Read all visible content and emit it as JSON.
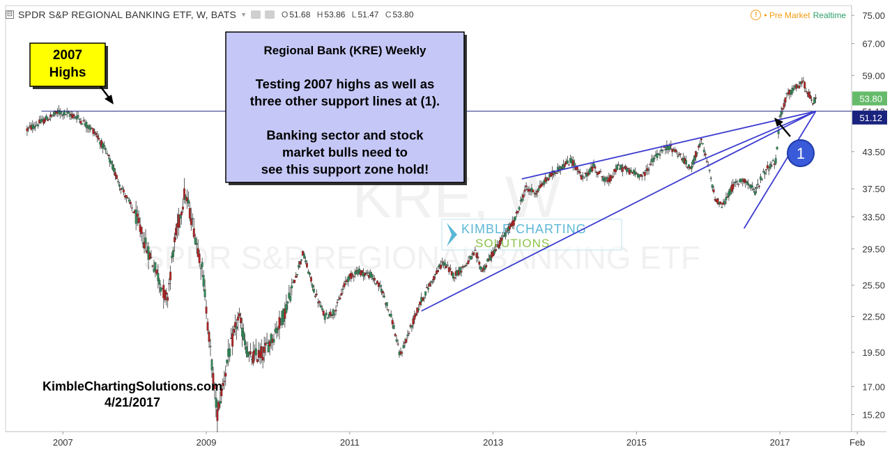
{
  "header": {
    "collapse_glyph": "⊟",
    "symbol_title": "SPDR S&P REGIONAL BANKING ETF, W, BATS",
    "dropdown_icon": "chevron-down-icon",
    "ohlc": [
      {
        "label": "O",
        "value": "51.68"
      },
      {
        "label": "H",
        "value": "53.86"
      },
      {
        "label": "L",
        "value": "51.47"
      },
      {
        "label": "C",
        "value": "53.80"
      }
    ],
    "alert_glyph": "!",
    "premarket_label": "• Pre Market",
    "realtime_label": "Realtime"
  },
  "watermark": {
    "line1": "KRE, W",
    "line2": "SPDR S&P REGIONAL BANKING ETF"
  },
  "logo": {
    "line1": "KIMBLE CHARTING",
    "line2": "SOLUTIONS"
  },
  "callout": {
    "highs_box": [
      "2007",
      "Highs"
    ],
    "note_lines": [
      "Regional Bank (KRE) Weekly",
      "",
      "Testing 2007 highs as well as",
      "three other support lines at (1).",
      "",
      "Banking sector and stock",
      "market bulls need to",
      "see this support zone hold!"
    ],
    "marker_label": "1",
    "credit_lines": [
      "KimbleChartingSolutions.com",
      "4/21/2017"
    ]
  },
  "colors": {
    "up": "#2e8b57",
    "down": "#b22222",
    "trend": "#3b3bd1",
    "support": "#1a237e",
    "note_fill": "#c5c8f7",
    "highs_fill": "#ffff00",
    "marker": "#3a5bd9",
    "price_tag": "#66bb6a",
    "support_tag": "#1a237e"
  },
  "chart_data": {
    "type": "candlestick",
    "title": "SPDR S&P REGIONAL BANKING ETF, W, BATS",
    "y_scale": "log",
    "ylim": [
      14.2,
      78
    ],
    "xlim": [
      2006.2,
      2018.0
    ],
    "y_ticks": [
      "75.00",
      "67.00",
      "59.00",
      "51.12",
      "43.50",
      "37.50",
      "33.50",
      "29.50",
      "25.50",
      "22.50",
      "19.50",
      "17.00",
      "15.20"
    ],
    "x_ticks": [
      {
        "label": "2007",
        "x": 2007.0
      },
      {
        "label": "2009",
        "x": 2009.0
      },
      {
        "label": "2011",
        "x": 2011.0
      },
      {
        "label": "2013",
        "x": 2013.0
      },
      {
        "label": "2015",
        "x": 2015.0
      },
      {
        "label": "2017",
        "x": 2017.0
      },
      {
        "label": "Feb",
        "x": 2018.08
      }
    ],
    "last_price": {
      "label": "53.80",
      "value": 53.8
    },
    "support_level": {
      "label": "51.12",
      "value": 51.12,
      "x_start": 2006.7
    },
    "price_path": [
      [
        2006.5,
        47.5
      ],
      [
        2006.7,
        49
      ],
      [
        2006.95,
        51
      ],
      [
        2007.2,
        50
      ],
      [
        2007.45,
        47
      ],
      [
        2007.6,
        43.5
      ],
      [
        2007.8,
        38
      ],
      [
        2008.0,
        34
      ],
      [
        2008.15,
        30
      ],
      [
        2008.3,
        27
      ],
      [
        2008.45,
        24
      ],
      [
        2008.55,
        30
      ],
      [
        2008.7,
        37
      ],
      [
        2008.8,
        33
      ],
      [
        2008.95,
        27
      ],
      [
        2009.05,
        20
      ],
      [
        2009.15,
        15.2
      ],
      [
        2009.3,
        19
      ],
      [
        2009.45,
        22.5
      ],
      [
        2009.6,
        19
      ],
      [
        2009.8,
        19.5
      ],
      [
        2009.95,
        21
      ],
      [
        2010.1,
        23
      ],
      [
        2010.25,
        26.5
      ],
      [
        2010.35,
        29
      ],
      [
        2010.5,
        25
      ],
      [
        2010.65,
        22.5
      ],
      [
        2010.8,
        23
      ],
      [
        2010.95,
        26
      ],
      [
        2011.1,
        27
      ],
      [
        2011.3,
        26.5
      ],
      [
        2011.45,
        25
      ],
      [
        2011.6,
        22
      ],
      [
        2011.7,
        19.2
      ],
      [
        2011.85,
        21.5
      ],
      [
        2012.0,
        24
      ],
      [
        2012.15,
        26
      ],
      [
        2012.3,
        28
      ],
      [
        2012.45,
        26.5
      ],
      [
        2012.6,
        27.5
      ],
      [
        2012.75,
        29
      ],
      [
        2012.85,
        27
      ],
      [
        2013.0,
        29
      ],
      [
        2013.15,
        31
      ],
      [
        2013.3,
        33
      ],
      [
        2013.45,
        37.5
      ],
      [
        2013.6,
        37
      ],
      [
        2013.75,
        39
      ],
      [
        2013.9,
        40.5
      ],
      [
        2014.1,
        42
      ],
      [
        2014.25,
        39
      ],
      [
        2014.4,
        41
      ],
      [
        2014.6,
        38.5
      ],
      [
        2014.75,
        41
      ],
      [
        2014.95,
        40
      ],
      [
        2015.1,
        39.5
      ],
      [
        2015.25,
        42.5
      ],
      [
        2015.45,
        44.5
      ],
      [
        2015.6,
        43
      ],
      [
        2015.75,
        40.5
      ],
      [
        2015.9,
        45.5
      ],
      [
        2016.0,
        41
      ],
      [
        2016.1,
        36
      ],
      [
        2016.2,
        35
      ],
      [
        2016.35,
        38
      ],
      [
        2016.5,
        39
      ],
      [
        2016.65,
        37
      ],
      [
        2016.8,
        40.5
      ],
      [
        2016.95,
        42
      ],
      [
        2017.0,
        50
      ],
      [
        2017.1,
        54.5
      ],
      [
        2017.25,
        56.5
      ],
      [
        2017.32,
        57.5
      ],
      [
        2017.4,
        55
      ],
      [
        2017.45,
        52.5
      ],
      [
        2017.5,
        53.8
      ]
    ],
    "trendlines": [
      {
        "from": [
          2012.0,
          23.0
        ],
        "to": [
          2017.5,
          51.12
        ]
      },
      {
        "from": [
          2013.4,
          39.0
        ],
        "to": [
          2017.5,
          51.12
        ]
      },
      {
        "from": [
          2016.5,
          32.0
        ],
        "to": [
          2017.5,
          51.12
        ]
      },
      {
        "from": [
          2015.8,
          41.5
        ],
        "to": [
          2017.5,
          51.12
        ]
      }
    ]
  }
}
